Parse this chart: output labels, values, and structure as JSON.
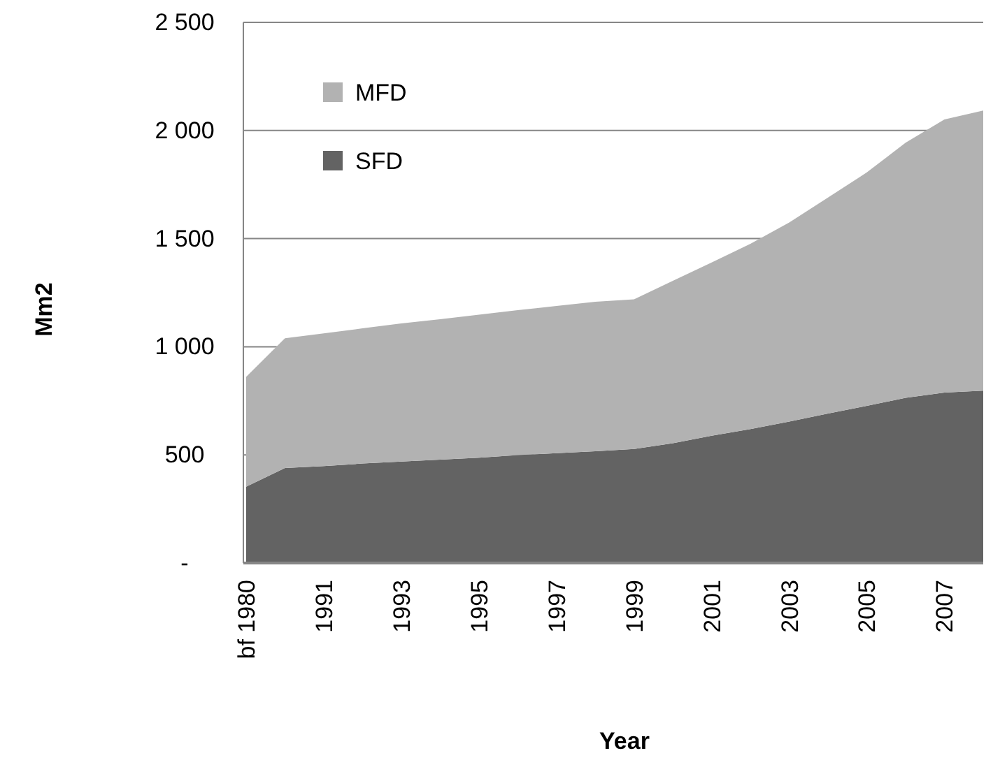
{
  "chart_data": {
    "type": "area",
    "stacked": true,
    "xlabel": "Year",
    "ylabel": "Mm2",
    "categories": [
      "bf 1980",
      null,
      "1991",
      null,
      "1993",
      null,
      "1995",
      null,
      "1997",
      null,
      "1999",
      null,
      "2001",
      null,
      "2003",
      null,
      "2005",
      null,
      "2007",
      null
    ],
    "series": [
      {
        "name": "SFD",
        "color": "#636363",
        "values": [
          353,
          439,
          448,
          460,
          469,
          478,
          487,
          499,
          508,
          517,
          527,
          554,
          589,
          619,
          654,
          691,
          727,
          764,
          788,
          797
        ]
      },
      {
        "name": "MFD",
        "color": "#b2b2b2",
        "values": [
          508,
          600,
          614,
          625,
          639,
          649,
          661,
          670,
          681,
          691,
          692,
          751,
          801,
          857,
          921,
          999,
          1079,
          1180,
          1263,
          1295
        ]
      }
    ],
    "ylim": [
      0,
      2500
    ],
    "yticks": [
      {
        "value": 0,
        "label": "-"
      },
      500,
      {
        "value": 1000,
        "label": "1 000"
      },
      {
        "value": 1500,
        "label": "1 500"
      },
      {
        "value": 2000,
        "label": "2 000"
      },
      {
        "value": 2500,
        "label": "2 500"
      }
    ],
    "grid": "y",
    "legend": "top left"
  }
}
